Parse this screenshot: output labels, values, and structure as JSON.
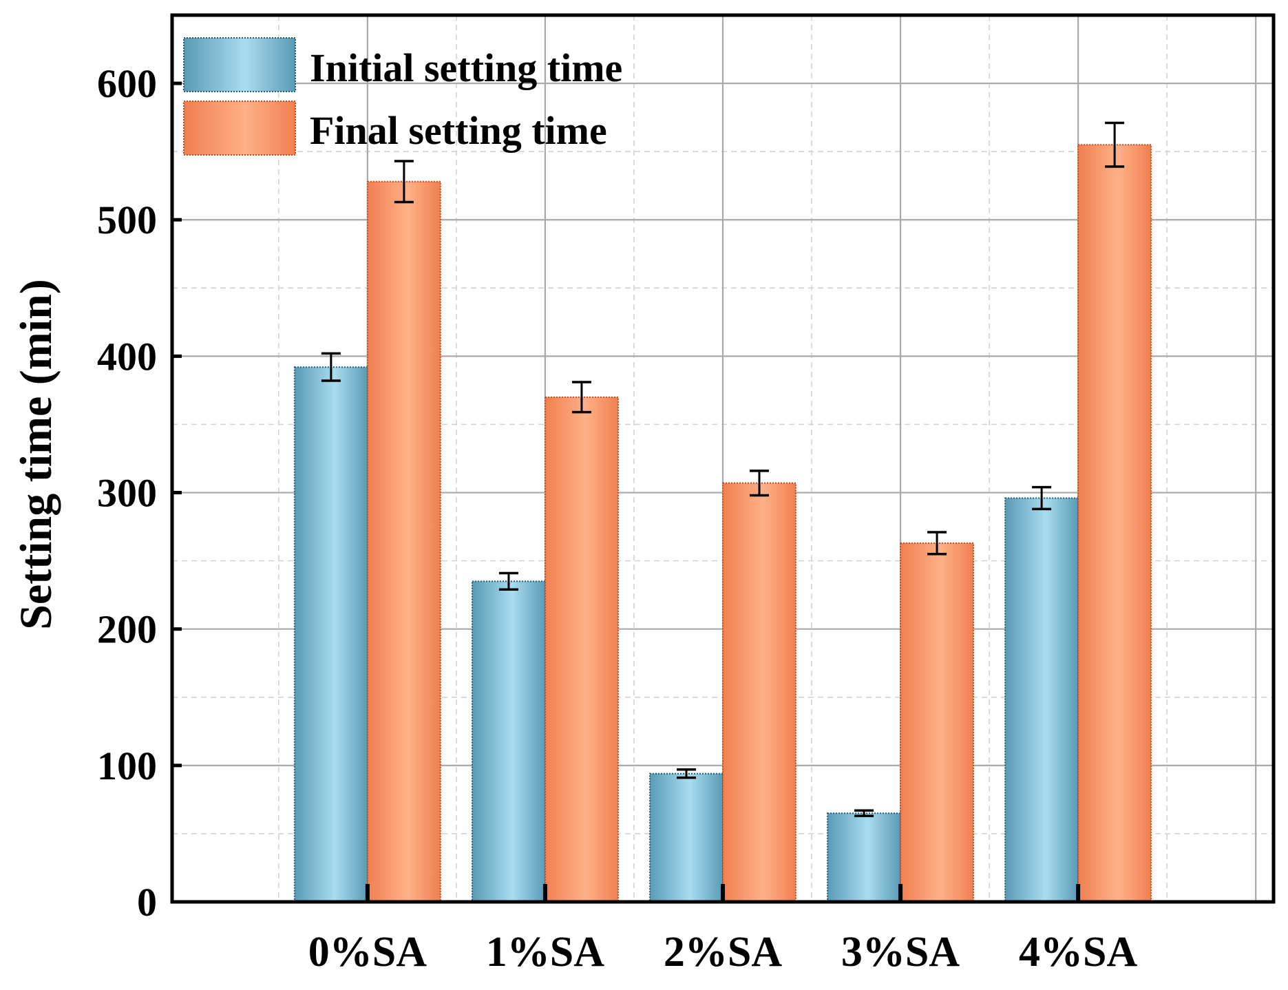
{
  "chart_data": {
    "type": "bar",
    "title": "",
    "xlabel": "",
    "ylabel": "Setting time (min)",
    "ylim": [
      0,
      650
    ],
    "yticks": [
      0,
      100,
      200,
      300,
      400,
      500,
      600
    ],
    "grid": true,
    "legend_position": "top-left",
    "categories": [
      "0%SA",
      "1%SA",
      "2%SA",
      "3%SA",
      "4%SA"
    ],
    "series": [
      {
        "name": "Initial setting time",
        "values": [
          392,
          235,
          94,
          65,
          296
        ],
        "errors": [
          10,
          6,
          3,
          2,
          8
        ],
        "color": "#5a9bb5",
        "light_color": "#a9dcef",
        "edge_color": "#1e5e78"
      },
      {
        "name": "Final setting time",
        "values": [
          528,
          370,
          307,
          263,
          555
        ],
        "errors": [
          15,
          11,
          9,
          8,
          16
        ],
        "color": "#f08050",
        "light_color": "#ffb088",
        "edge_color": "#c84818"
      }
    ]
  }
}
